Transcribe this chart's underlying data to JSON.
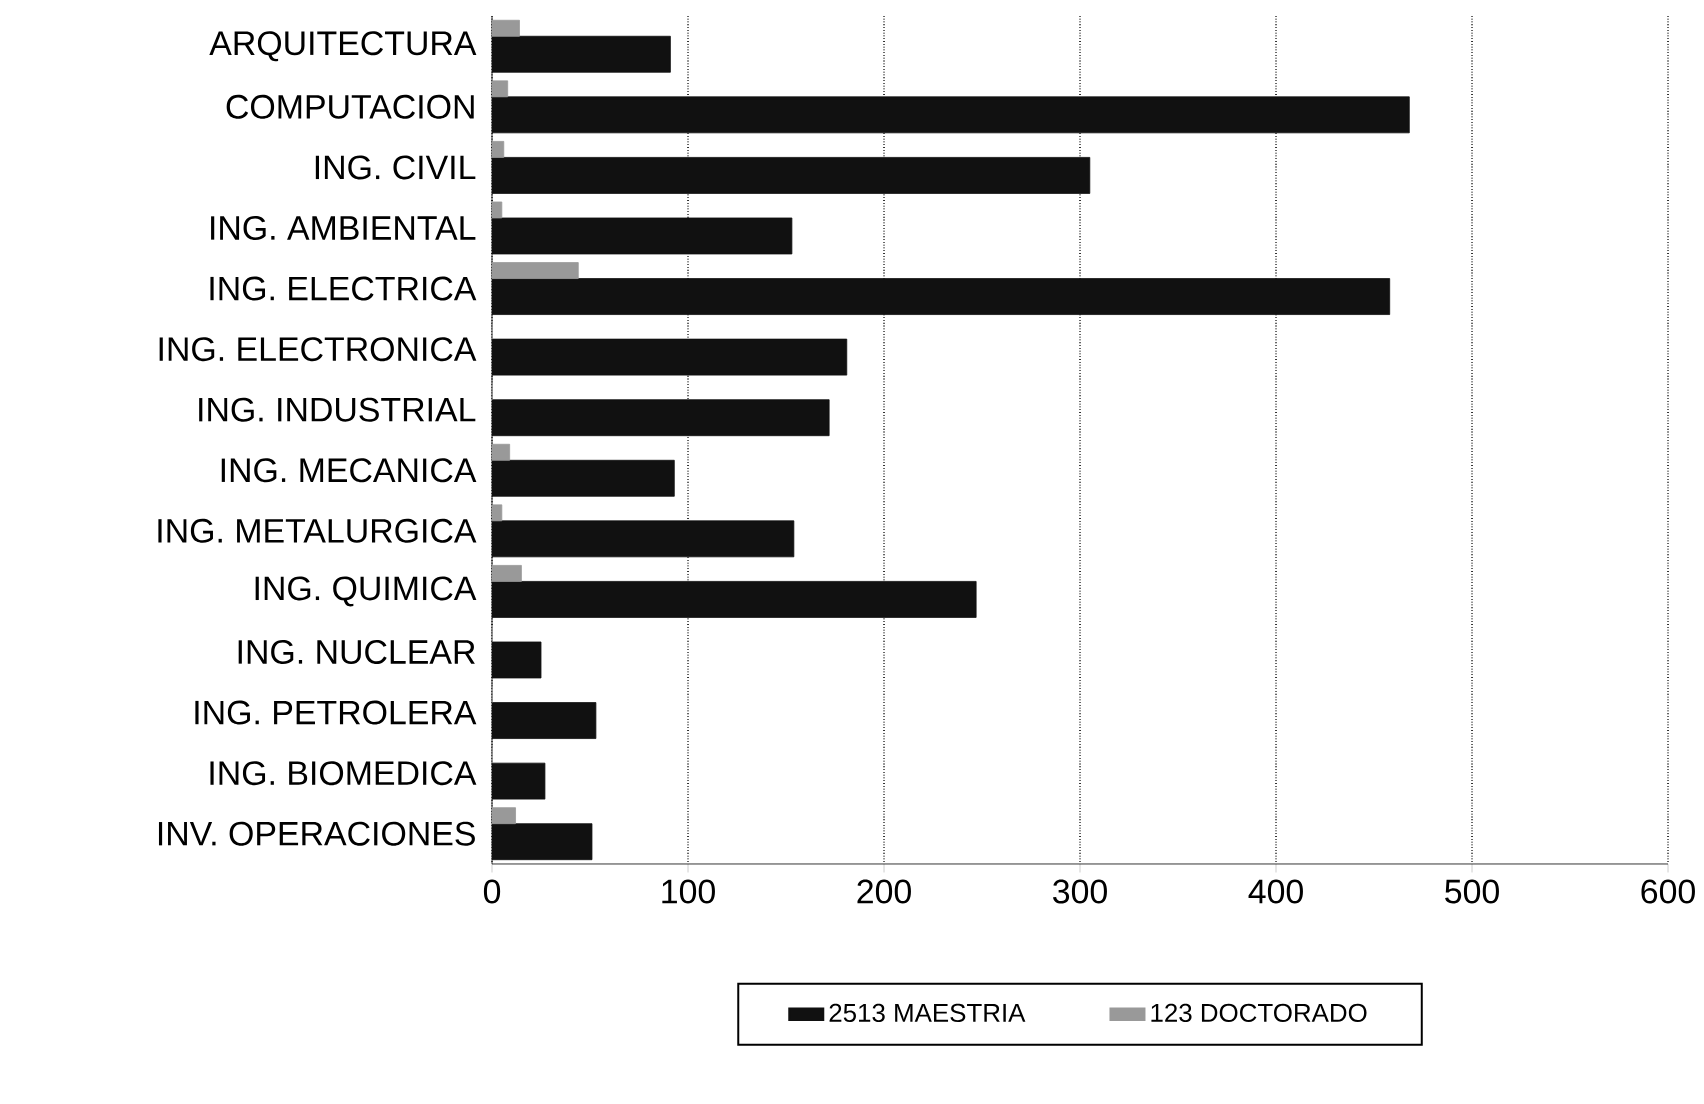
{
  "chart_data": {
    "type": "bar",
    "orientation": "horizontal",
    "categories": [
      "ARQUITECTURA",
      "COMPUTACION",
      "ING. CIVIL",
      "ING. AMBIENTAL",
      "ING. ELECTRICA",
      "ING. ELECTRONICA",
      "ING. INDUSTRIAL",
      "ING. MECANICA",
      "ING. METALURGICA",
      "ING. QUIMICA",
      "ING. NUCLEAR",
      "ING. PETROLERA",
      "ING. BIOMEDICA",
      "INV. OPERACIONES"
    ],
    "series": [
      {
        "name": "2513 MAESTRIA",
        "color": "#111111",
        "values": [
          91,
          468,
          305,
          153,
          458,
          181,
          172,
          93,
          154,
          247,
          25,
          53,
          27,
          51
        ]
      },
      {
        "name": "123 DOCTORADO",
        "color": "#999999",
        "values": [
          14,
          8,
          6,
          5,
          44,
          0,
          0,
          9,
          5,
          15,
          0,
          0,
          0,
          12
        ]
      }
    ],
    "xlim": [
      0,
      600
    ],
    "xticks": [
      0,
      100,
      200,
      300,
      400,
      500,
      600
    ],
    "grid": "x",
    "legend": "bottom"
  }
}
